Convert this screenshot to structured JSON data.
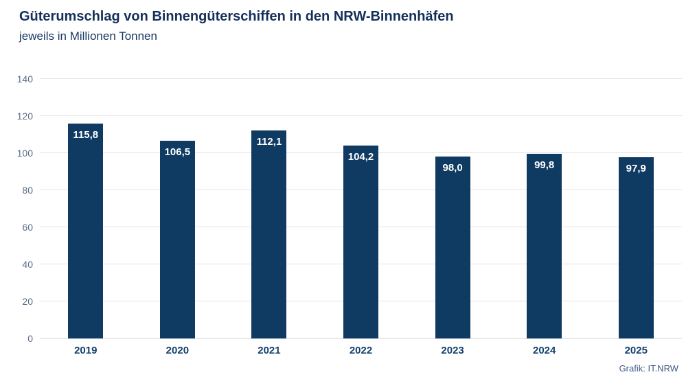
{
  "header": {
    "title": "Güterumschlag von Binnengüterschiffen in den NRW-Binnenhäfen",
    "subtitle": "jeweils in Millionen Tonnen"
  },
  "footer": {
    "credit": "Grafik: IT.NRW"
  },
  "colors": {
    "bar": "#0f3a62",
    "title": "#132f5a",
    "subtitle": "#1b3763",
    "tick_label": "#5d6d89",
    "gridline": "#e4e4e4",
    "baseline": "#d2d2d2",
    "x_label": "#13406e",
    "value_label": "#ffffff",
    "credit": "#3f5a86",
    "background": "#ffffff"
  },
  "chart_data": {
    "type": "bar",
    "title": "Güterumschlag von Binnengüterschiffen in den NRW-Binnenhäfen",
    "subtitle": "jeweils in Millionen Tonnen",
    "categories": [
      "2019",
      "2020",
      "2021",
      "2022",
      "2023",
      "2024",
      "2025"
    ],
    "values": [
      115.8,
      106.5,
      112.1,
      104.2,
      98.0,
      99.8,
      97.9
    ],
    "value_labels": [
      "115,8",
      "106,5",
      "112,1",
      "104,2",
      "98,0",
      "99,8",
      "97,9"
    ],
    "xlabel": "",
    "ylabel": "",
    "unit": "Millionen Tonnen",
    "ylim": [
      0,
      140
    ],
    "yticks": [
      0,
      20,
      40,
      60,
      80,
      100,
      120,
      140
    ],
    "grid": true,
    "legend": false,
    "value_labels_position": "inside-top",
    "source": "Grafik: IT.NRW"
  }
}
